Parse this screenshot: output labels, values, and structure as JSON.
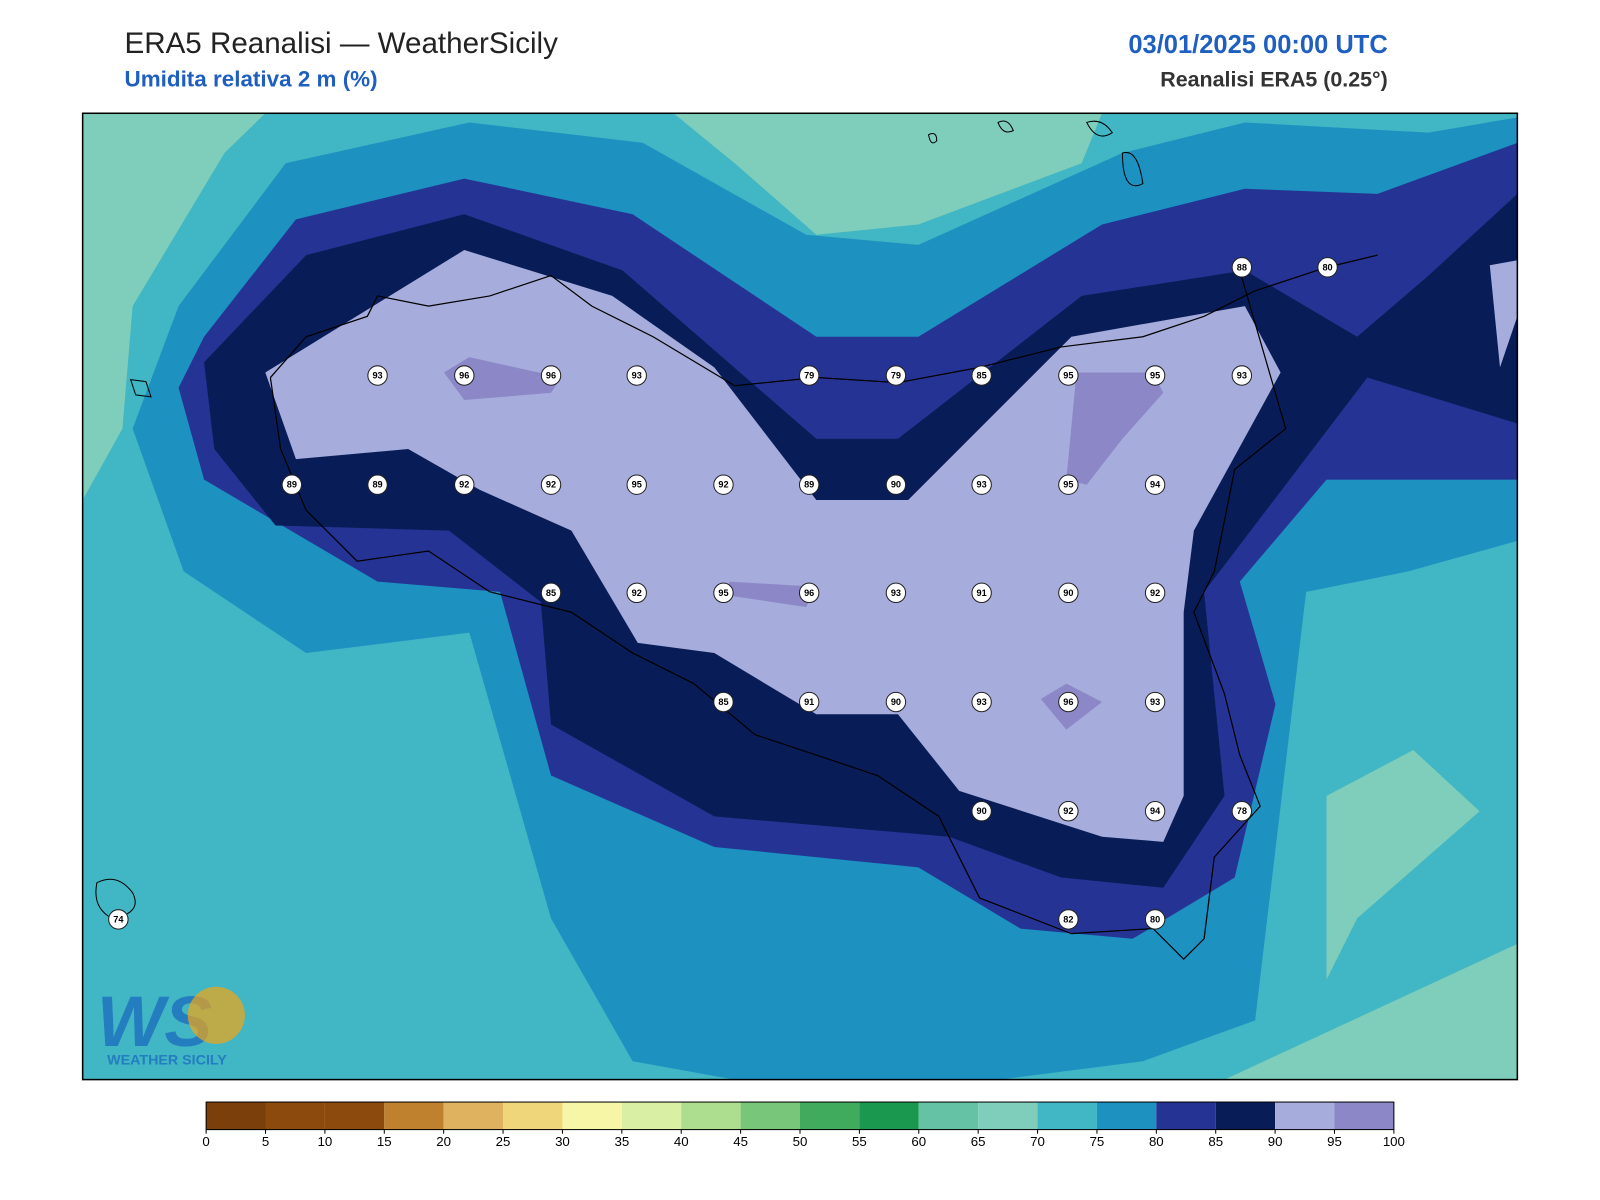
{
  "header": {
    "title": "ERA5 Reanalisi — WeatherSicily",
    "subtitle": "Umidita relativa 2 m (%)",
    "datetime": "03/01/2025 00:00 UTC",
    "source": "Reanalisi ERA5 (0.25°)"
  },
  "stations": [
    88,
    80,
    93,
    96,
    96,
    93,
    79,
    79,
    85,
    95,
    95,
    93,
    89,
    89,
    92,
    92,
    95,
    92,
    89,
    90,
    93,
    95,
    94,
    85,
    92,
    95,
    96,
    93,
    91,
    90,
    92,
    85,
    91,
    90,
    93,
    96,
    93,
    90,
    92,
    94,
    78,
    74,
    82,
    80
  ],
  "colorbar": {
    "ticks": [
      0,
      5,
      10,
      15,
      20,
      25,
      30,
      35,
      40,
      45,
      50,
      55,
      60,
      65,
      70,
      75,
      80,
      85,
      90,
      95,
      100
    ],
    "colors": [
      "#7a3f0a",
      "#8c4a0c",
      "#8c4a0c",
      "#bf812d",
      "#dfb25f",
      "#f0d67a",
      "#f6f6a6",
      "#d9efa3",
      "#addd8e",
      "#78c679",
      "#41ab5d",
      "#1a9850",
      "#66c2a4",
      "#7fcdbb",
      "#41b6c4",
      "#1d91c0",
      "#253494",
      "#081d58",
      "#a6acdb",
      "#8c88c8"
    ]
  },
  "logo": {
    "text": "WEATHER SICILY"
  }
}
